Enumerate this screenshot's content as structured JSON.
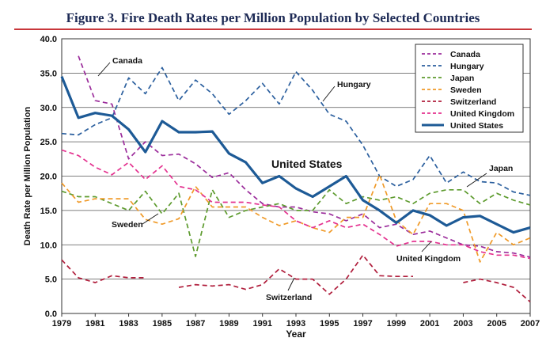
{
  "title": "Figure 3. Fire Death Rates per Million Population by Selected Countries",
  "chart_data": {
    "type": "line",
    "title": "Figure 3. Fire Death Rates per Million Population by Selected Countries",
    "xlabel": "Year",
    "ylabel": "Death Rate per Million Population",
    "xlim": [
      1979,
      2007
    ],
    "ylim": [
      0,
      40
    ],
    "grid": true,
    "legend": "top-right",
    "x": [
      1979,
      1980,
      1981,
      1982,
      1983,
      1984,
      1985,
      1986,
      1987,
      1988,
      1989,
      1990,
      1991,
      1992,
      1993,
      1994,
      1995,
      1996,
      1997,
      1998,
      1999,
      2000,
      2001,
      2002,
      2003,
      2004,
      2005,
      2006,
      2007
    ],
    "x_tick_labels": [
      "1979",
      "1981",
      "1983",
      "1985",
      "1987",
      "1989",
      "1991",
      "1993",
      "1995",
      "1997",
      "1999",
      "2001",
      "2003",
      "2005",
      "2007"
    ],
    "y_tick_labels": [
      "0.0",
      "5.0",
      "10.0",
      "15.0",
      "20.0",
      "25.0",
      "30.0",
      "35.0",
      "40.0"
    ],
    "series": [
      {
        "name": "Canada",
        "color": "#9b2c9b",
        "dash": true,
        "values": [
          null,
          37.5,
          31.0,
          30.5,
          22.5,
          25.0,
          23.0,
          23.2,
          21.8,
          19.8,
          20.5,
          18.0,
          16.0,
          15.5,
          15.5,
          14.8,
          14.5,
          13.5,
          14.5,
          12.5,
          13.0,
          11.5,
          12.0,
          11.0,
          10.0,
          9.8,
          9.0,
          8.8,
          8.2
        ]
      },
      {
        "name": "Hungary",
        "color": "#2b5f9e",
        "dash": true,
        "values": [
          26.2,
          26.0,
          27.5,
          28.5,
          34.3,
          32.0,
          35.8,
          31.0,
          34.0,
          32.0,
          29.0,
          31.0,
          33.5,
          30.5,
          35.2,
          32.5,
          29.0,
          28.0,
          24.5,
          20.0,
          18.5,
          19.5,
          23.0,
          19.0,
          20.6,
          19.2,
          19.0,
          17.7,
          17.2
        ]
      },
      {
        "name": "Japan",
        "color": "#5e9b2f",
        "dash": true,
        "values": [
          17.8,
          17.0,
          17.0,
          16.0,
          15.0,
          17.8,
          14.5,
          17.5,
          8.3,
          18.0,
          14.0,
          15.0,
          15.5,
          16.0,
          15.0,
          15.0,
          18.0,
          16.0,
          17.0,
          16.5,
          17.0,
          16.0,
          17.5,
          18.0,
          18.0,
          16.0,
          17.5,
          16.5,
          15.8
        ]
      },
      {
        "name": "Sweden",
        "color": "#f09a28",
        "dash": true,
        "values": [
          19.0,
          16.2,
          16.7,
          16.7,
          16.7,
          13.7,
          13.0,
          13.8,
          18.5,
          15.5,
          15.5,
          15.5,
          14.0,
          12.8,
          13.5,
          12.5,
          11.8,
          14.0,
          14.0,
          20.2,
          13.5,
          11.5,
          16.0,
          16.0,
          15.0,
          7.5,
          11.8,
          10.0,
          11.0
        ]
      },
      {
        "name": "Switzerland",
        "color": "#b01e3c",
        "dash": true,
        "values": [
          7.8,
          5.2,
          4.5,
          5.5,
          5.2,
          5.2,
          null,
          3.8,
          4.2,
          4.0,
          4.2,
          3.5,
          4.2,
          6.5,
          5.0,
          5.0,
          2.8,
          5.0,
          8.5,
          5.5,
          5.4,
          5.4,
          null,
          null,
          4.5,
          5.0,
          4.5,
          3.8,
          1.7
        ]
      },
      {
        "name": "United Kingdom",
        "color": "#e4318f",
        "dash": true,
        "values": [
          23.8,
          23.0,
          21.3,
          20.2,
          22.0,
          19.5,
          21.5,
          18.5,
          18.0,
          16.2,
          16.2,
          16.2,
          15.8,
          15.5,
          13.5,
          12.5,
          13.5,
          12.5,
          13.0,
          11.5,
          9.8,
          10.5,
          10.5,
          10.0,
          10.0,
          9.0,
          8.5,
          8.5,
          8.0
        ]
      },
      {
        "name": "United States",
        "color": "#1d5a96",
        "dash": false,
        "values": [
          34.5,
          28.5,
          29.2,
          28.8,
          26.8,
          23.5,
          28.0,
          26.4,
          26.4,
          26.5,
          23.3,
          22.0,
          19.0,
          20.0,
          18.2,
          17.0,
          18.5,
          20.0,
          16.5,
          15.0,
          13.2,
          15.0,
          14.3,
          12.8,
          14.0,
          14.2,
          13.0,
          11.8,
          12.5
        ]
      }
    ],
    "annotations": [
      "Canada",
      "Hungary",
      "United States",
      "Japan",
      "Sweden",
      "United Kingdom",
      "Switzerland"
    ]
  }
}
